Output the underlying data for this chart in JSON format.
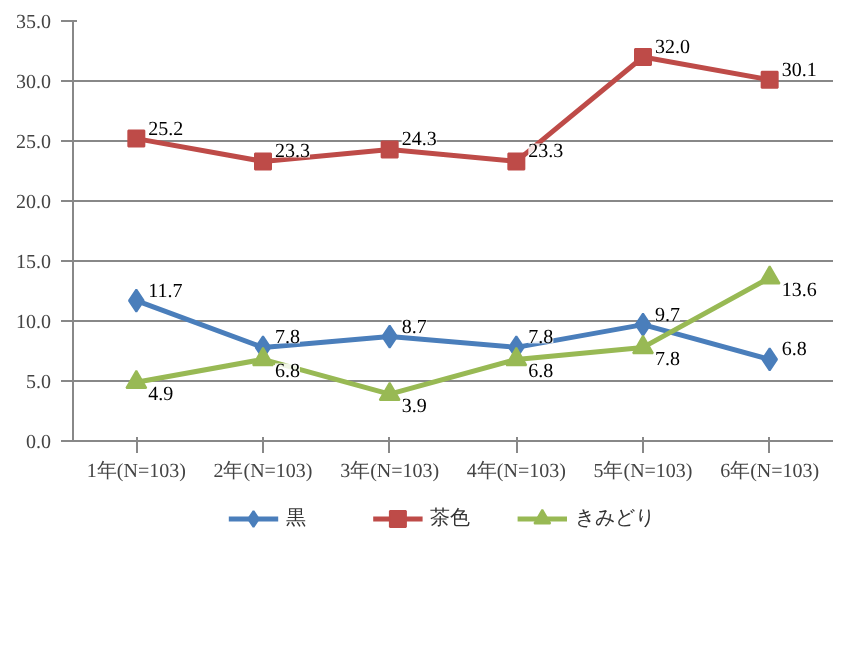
{
  "chart_data": {
    "type": "line",
    "categories": [
      "1年(N=103)",
      "2年(N=103)",
      "3年(N=103)",
      "4年(N=103)",
      "5年(N=103)",
      "6年(N=103)"
    ],
    "series": [
      {
        "name": "黒",
        "color": "#4a7ebb",
        "marker": "diamond",
        "values": [
          11.7,
          7.8,
          8.7,
          7.8,
          9.7,
          6.8
        ],
        "value_labels": [
          "11.7",
          "7.8",
          "8.7",
          "7.8",
          "9.7",
          "6.8"
        ]
      },
      {
        "name": "茶色",
        "color": "#be4b48",
        "marker": "square",
        "values": [
          25.2,
          23.3,
          24.3,
          23.3,
          32.0,
          30.1
        ],
        "value_labels": [
          "25.2",
          "23.3",
          "24.3",
          "23.3",
          "32.0",
          "30.1"
        ]
      },
      {
        "name": "きみどり",
        "color": "#98b954",
        "marker": "triangle",
        "values": [
          4.9,
          6.8,
          3.9,
          6.8,
          7.8,
          13.6
        ],
        "value_labels": [
          "4.9",
          "6.8",
          "3.9",
          "6.8",
          "7.8",
          "13.6"
        ]
      }
    ],
    "ylim": [
      0,
      35
    ],
    "yticks": [
      {
        "value": 0,
        "label": "0.0"
      },
      {
        "value": 5,
        "label": "5.0"
      },
      {
        "value": 10,
        "label": "10.0"
      },
      {
        "value": 15,
        "label": "15.0"
      },
      {
        "value": 20,
        "label": "20.0"
      },
      {
        "value": 25,
        "label": "25.0"
      },
      {
        "value": 30,
        "label": "30.0"
      },
      {
        "value": 35,
        "label": "35.0"
      }
    ],
    "grid": "y",
    "legend": "bottom",
    "line_style": "solid"
  }
}
